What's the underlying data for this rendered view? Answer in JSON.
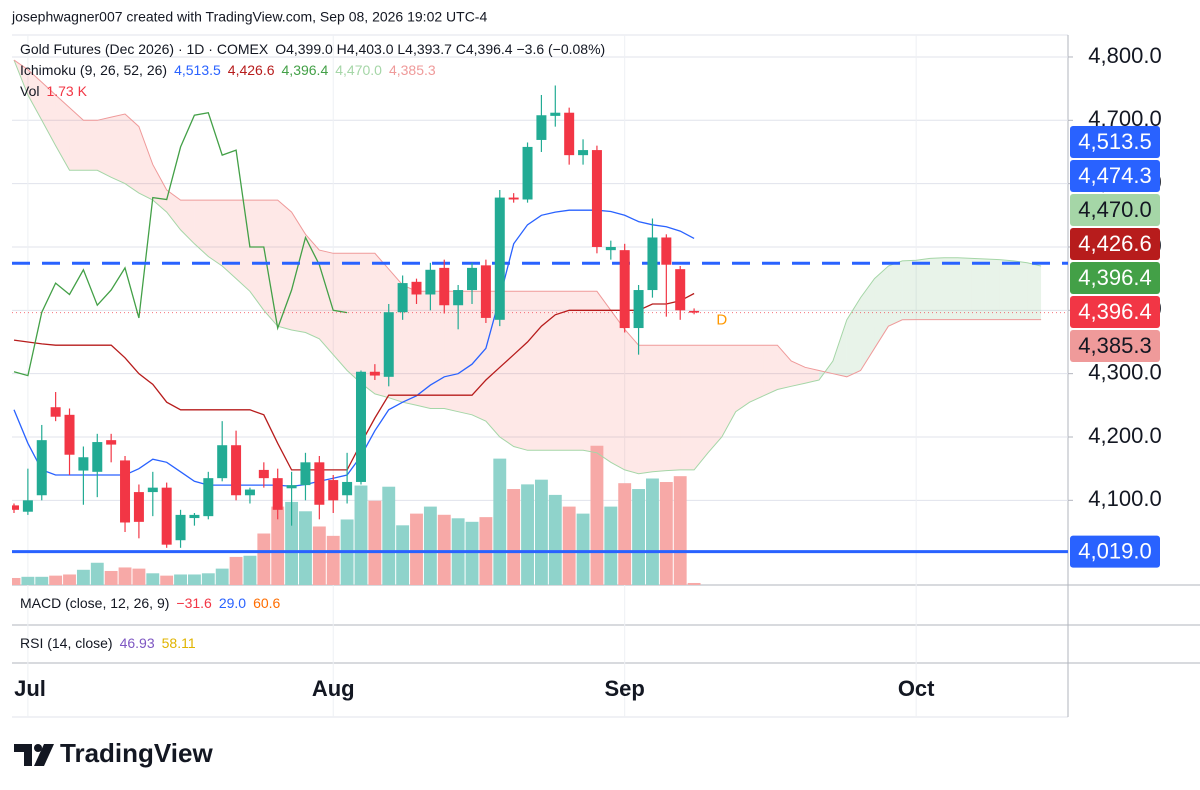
{
  "header": {
    "attribution": "josephwagner007 created with TradingView.com, Sep 08, 2026 19:02 UTC-4"
  },
  "legend": {
    "symbol": "Gold Futures (Dec 2026) · 1D · COMEX",
    "ohlc": "O4,399.0 H4,403.0 L4,393.7 C4,396.4 −3.6 (−0.08%)",
    "ichimoku": {
      "title": "Ichimoku (9, 26, 52, 26)",
      "values": [
        {
          "text": "4,513.5",
          "color": "#2962ff"
        },
        {
          "text": "4,426.6",
          "color": "#b71c1c"
        },
        {
          "text": "4,396.4",
          "color": "#43a047"
        },
        {
          "text": "4,470.0",
          "color": "#a5d6a7"
        },
        {
          "text": "4,385.3",
          "color": "#ef9a9a"
        }
      ]
    },
    "vol": {
      "title": "Vol",
      "values": [
        {
          "text": "1.73 K",
          "color": "#f23645"
        }
      ]
    },
    "macd": {
      "title": "MACD (close, 12, 26, 9)",
      "values": [
        {
          "text": "−31.6",
          "color": "#f23645"
        },
        {
          "text": "29.0",
          "color": "#2962ff"
        },
        {
          "text": "60.6",
          "color": "#ff6d00"
        }
      ]
    },
    "rsi": {
      "title": "RSI (14, close)",
      "values": [
        {
          "text": "46.93",
          "color": "#7e57c2"
        },
        {
          "text": "58.11",
          "color": "#e0b400"
        }
      ]
    }
  },
  "chart_data": {
    "type": "candlestick",
    "xlim": [
      -0.144,
      75.94
    ],
    "xticks": [
      {
        "value": 1,
        "label": "Jul"
      },
      {
        "value": 23,
        "label": "Aug"
      },
      {
        "value": 44,
        "label": "Sep"
      },
      {
        "value": 65,
        "label": "Oct"
      }
    ],
    "ylim": [
      3966.3,
      4834.7
    ],
    "yticks": [
      {
        "value": 4100,
        "label": "4,100.0"
      },
      {
        "value": 4200,
        "label": "4,200.0"
      },
      {
        "value": 4300,
        "label": "4,300.0"
      },
      {
        "value": 4400,
        "label": "4,400.0"
      },
      {
        "value": 4500,
        "label": "4,500.0"
      },
      {
        "value": 4600,
        "label": "4,600.0"
      },
      {
        "value": 4700,
        "label": "4,700.0"
      },
      {
        "value": 4800,
        "label": "4,800.0"
      }
    ],
    "grid": true,
    "up_color": "#22ab94",
    "down_color": "#f23645",
    "candles": {
      "open": [
        4092,
        4082,
        4108,
        4247,
        4235,
        4147,
        4145,
        4195,
        4163,
        4113,
        4113,
        4120,
        4037,
        4072,
        4075,
        4135,
        4187,
        4108,
        4148,
        4135,
        4119,
        4124,
        4160,
        4132,
        4108,
        4129,
        4303,
        4295,
        4397,
        4445,
        4425,
        4467,
        4408,
        4432,
        4471,
        4385,
        4578,
        4575,
        4669,
        4707,
        4712,
        4645,
        4653,
        4495,
        4495,
        4372,
        4432,
        4515,
        4465,
        4399.0
      ],
      "high": [
        4095,
        4150,
        4219,
        4271,
        4245,
        4185,
        4205,
        4205,
        4170,
        4125,
        4145,
        4128,
        4085,
        4080,
        4145,
        4225,
        4210,
        4120,
        4160,
        4150,
        4145,
        4175,
        4170,
        4140,
        4175,
        4305,
        4315,
        4410,
        4455,
        4450,
        4475,
        4480,
        4440,
        4475,
        4480,
        4590,
        4585,
        4665,
        4740,
        4755,
        4720,
        4670,
        4660,
        4510,
        4505,
        4440,
        4545,
        4520,
        4470,
        4403.0
      ],
      "low": [
        4080,
        4077,
        4100,
        4225,
        4140,
        4093,
        4105,
        4160,
        4050,
        4040,
        4075,
        4025,
        4025,
        4060,
        4070,
        4130,
        4100,
        4095,
        4120,
        4070,
        4060,
        4100,
        4070,
        4080,
        4095,
        4125,
        4290,
        4280,
        4385,
        4410,
        4400,
        4395,
        4370,
        4410,
        4380,
        4375,
        4570,
        4570,
        4650,
        4690,
        4630,
        4630,
        4490,
        4480,
        4365,
        4330,
        4420,
        4390,
        4385,
        4393.7
      ],
      "close": [
        4085,
        4100,
        4195,
        4232,
        4172,
        4168,
        4192,
        4188,
        4065,
        4066,
        4120,
        4030,
        4077,
        4077,
        4135,
        4187,
        4108,
        4117,
        4135,
        4085,
        4124,
        4160,
        4093,
        4100,
        4129,
        4303,
        4297,
        4397,
        4443,
        4425,
        4464,
        4408,
        4432,
        4467,
        4388,
        4578,
        4575,
        4658,
        4708,
        4712,
        4645,
        4653,
        4500,
        4500,
        4372,
        4432,
        4515,
        4472,
        4400,
        4396.4
      ]
    },
    "volume": {
      "ylim": [
        0,
        470
      ],
      "up_color": "#8fd3cb",
      "down_color": "#f7a9a7",
      "values": [
        6,
        7,
        7,
        8,
        9,
        13,
        19,
        12,
        15,
        14,
        10,
        8,
        9,
        9,
        10,
        14,
        24,
        25,
        44,
        67,
        71,
        63,
        50,
        42,
        56,
        85,
        72,
        84,
        51,
        61,
        67,
        60,
        57,
        54,
        58,
        108,
        82,
        86,
        90,
        77,
        67,
        61,
        119,
        67,
        87,
        82,
        91,
        88,
        93,
        1.73
      ]
    },
    "ichimoku": {
      "lines": [
        {
          "color": "#2962ff",
          "values": [
            4243,
            4190,
            4148,
            4140,
            4140,
            4140,
            4140,
            4140,
            4140,
            4150,
            4165,
            4160,
            4145,
            4130,
            4124,
            4124,
            4124,
            4124,
            4124,
            4124,
            4122,
            4125,
            4130,
            4135,
            4140,
            4170,
            4210,
            4243,
            4255,
            4265,
            4282,
            4295,
            4300,
            4315,
            4340,
            4420,
            4505,
            4535,
            4550,
            4555,
            4558,
            4558,
            4558,
            4556,
            4550,
            4540,
            4535,
            4532,
            4525,
            4513.5,
            null,
            null,
            null,
            null,
            null,
            null,
            null,
            null,
            null,
            null,
            null,
            null,
            null,
            null,
            null,
            null,
            null,
            null,
            null,
            null,
            null,
            null,
            null,
            null,
            null
          ]
        },
        {
          "color": "#b71c1c",
          "values": [
            4353,
            4350,
            4347,
            4345,
            4345,
            4345,
            4345,
            4345,
            4325,
            4300,
            4283,
            4255,
            4243,
            4243,
            4243,
            4243,
            4243,
            4243,
            4235,
            4190,
            4148,
            4148,
            4148,
            4148,
            4148,
            4190,
            4230,
            4266,
            4266,
            4266,
            4266,
            4266,
            4266,
            4266,
            4290,
            4310,
            4330,
            4350,
            4375,
            4393,
            4400,
            4400,
            4400,
            4400,
            4400,
            4400,
            4410,
            4410,
            4415,
            4426.6,
            null,
            null,
            null,
            null,
            null,
            null,
            null,
            null,
            null,
            null,
            null,
            null,
            null,
            null,
            null,
            null,
            null,
            null,
            null,
            null,
            null,
            null,
            null,
            null,
            null
          ]
        },
        {
          "color": "#43a047",
          "values": [
            4303,
            4297,
            4397,
            4443,
            4425,
            4464,
            4408,
            4432,
            4467,
            4388,
            4578,
            4575,
            4658,
            4708,
            4712,
            4645,
            4653,
            4500,
            4500,
            4372,
            4432,
            4515,
            4472,
            4400,
            4396.4,
            null,
            null,
            null,
            null,
            null,
            null,
            null,
            null,
            null,
            null,
            null,
            null,
            null,
            null,
            null,
            null,
            null,
            null,
            null,
            null,
            null,
            null,
            null,
            null,
            null,
            null,
            null,
            null,
            null,
            null,
            null,
            null,
            null,
            null,
            null,
            null,
            null,
            null,
            null,
            null,
            null,
            null,
            null,
            null,
            null,
            null,
            null,
            null,
            null,
            null
          ]
        }
      ],
      "span_a": {
        "color": "#a5d6a7",
        "values": [
          4795,
          4740,
          4700,
          4660,
          4621,
          4621,
          4621,
          4610,
          4600,
          4585,
          4574,
          4555,
          4527,
          4505,
          4485,
          4470,
          4450,
          4430,
          4400,
          4375,
          4369,
          4365,
          4355,
          4330,
          4305,
          4285,
          4268,
          4262,
          4255,
          4250,
          4245,
          4245,
          4240,
          4235,
          4225,
          4200,
          4185,
          4179,
          4179,
          4179,
          4179,
          4179,
          4175,
          4160,
          4148,
          4142,
          4145,
          4147,
          4148,
          4148,
          4175,
          4200,
          4240,
          4255,
          4265,
          4275,
          4280,
          4285,
          4290,
          4320,
          4385,
          4420,
          4450,
          4470,
          4478,
          4479,
          4482,
          4483,
          4483,
          4482,
          4481,
          4480,
          4478,
          4475,
          4470.0
        ]
      },
      "span_b": {
        "color": "#ef9a9a",
        "values": [
          4795,
          4780,
          4760,
          4740,
          4720,
          4700,
          4700,
          4705,
          4710,
          4690,
          4630,
          4590,
          4574,
          4574,
          4574,
          4574,
          4574,
          4574,
          4574,
          4574,
          4555,
          4520,
          4495,
          4490,
          4490,
          4490,
          4490,
          4465,
          4440,
          4430,
          4430,
          4430,
          4430,
          4430,
          4430,
          4430,
          4430,
          4430,
          4430,
          4430,
          4430,
          4430,
          4430,
          4400,
          4370,
          4345,
          4345,
          4345,
          4345,
          4345,
          4345,
          4345,
          4345,
          4345,
          4345,
          4345,
          4320,
          4310,
          4305,
          4300,
          4295,
          4305,
          4340,
          4375,
          4385,
          4385.3,
          4385.3,
          4385.3,
          4385.3,
          4385.3,
          4385.3,
          4385.3,
          4385.3,
          4385.3,
          4385.3
        ]
      },
      "up_fill": "rgba(67,160,71,0.12)",
      "down_fill": "rgba(244,67,54,0.12)"
    },
    "levels": [
      {
        "value": 4474.3,
        "color": "#2962ff",
        "style": "dashed"
      },
      {
        "value": 4019.0,
        "color": "#2962ff",
        "style": "solid"
      }
    ],
    "price_badges": [
      {
        "value": 4513.5,
        "label": "4,513.5",
        "color": "#2962ff",
        "text_color": "#ffffff"
      },
      {
        "value": 4474.3,
        "label": "4,474.3",
        "color": "#2962ff",
        "text_color": "#ffffff"
      },
      {
        "value": 4470.0,
        "label": "4,470.0",
        "color": "#a5d6a7",
        "text_color": "#131722"
      },
      {
        "value": 4426.6,
        "label": "4,426.6",
        "color": "#b71c1c",
        "text_color": "#ffffff"
      },
      {
        "value": 4396.4,
        "label": "4,396.4",
        "color": "#43a047",
        "text_color": "#ffffff"
      },
      {
        "value": 4396.4,
        "label": "4,396.4",
        "color": "#f23645",
        "text_color": "#ffffff"
      },
      {
        "value": 4385.3,
        "label": "4,385.3",
        "color": "#ef9a9a",
        "text_color": "#131722"
      }
    ],
    "level_badge": {
      "value": 4019.0,
      "label": "4,019.0",
      "color": "#2962ff",
      "text_color": "#ffffff"
    },
    "marker": {
      "label": "D",
      "x": 51,
      "value": 4384,
      "color": "#ff9800"
    }
  },
  "footer": {
    "brand": "TradingView"
  }
}
